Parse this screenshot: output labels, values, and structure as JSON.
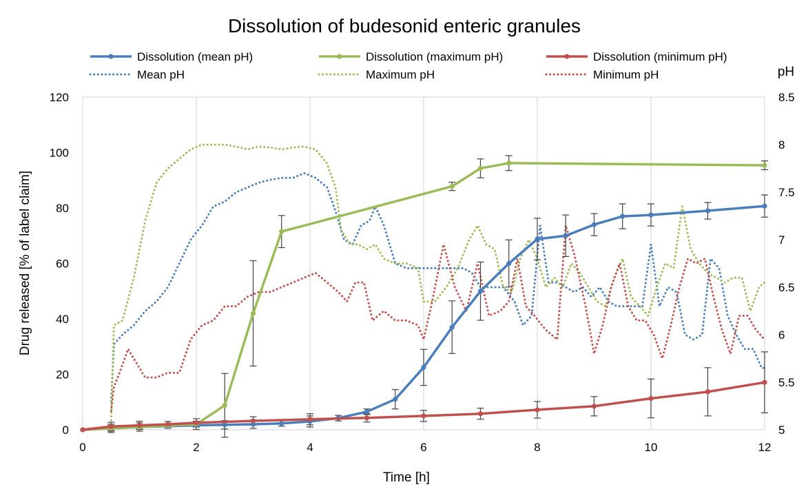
{
  "chart_data": {
    "type": "line",
    "title": "Dissolution of budesonid enteric granules",
    "xlabel": "Time [h]",
    "ylabel": "Drug released [% of label claim]",
    "y2label": "pH",
    "xlim": [
      0,
      12
    ],
    "ylim": [
      0,
      120
    ],
    "y2lim": [
      5,
      8.5
    ],
    "x_ticks": [
      0,
      2,
      4,
      6,
      8,
      10,
      12
    ],
    "y_ticks": [
      0,
      20,
      40,
      60,
      80,
      100,
      120
    ],
    "y2_ticks": [
      "5",
      "5.5",
      "6",
      "6.5",
      "7",
      "7.5",
      "8",
      "8.5"
    ],
    "grid": "vertical gridlines at x ticks",
    "legend_position": "top",
    "series": [
      {
        "name": "Dissolution (mean pH)",
        "axis": "left",
        "style": "solid",
        "color": "#4a7ebb",
        "x": [
          0,
          0.5,
          1,
          1.5,
          2,
          2.5,
          3,
          3.5,
          4,
          4.5,
          5,
          5.5,
          6,
          6.5,
          7,
          7.5,
          8,
          8.5,
          9,
          9.5,
          10,
          11,
          12
        ],
        "y": [
          0,
          0.5,
          1,
          1.3,
          1.6,
          1.8,
          2.0,
          2.3,
          3,
          4.2,
          6.5,
          11,
          22.5,
          37,
          50,
          60,
          68.8,
          70,
          74,
          77,
          77.5,
          79,
          80.7
        ],
        "err": [
          0,
          1.5,
          1.5,
          0.8,
          1.5,
          1.5,
          1.5,
          1,
          2,
          1,
          1,
          3.5,
          6.5,
          9.5,
          10.5,
          8.5,
          7.5,
          7.5,
          4,
          4.5,
          4,
          3,
          4
        ]
      },
      {
        "name": "Dissolution (maximum pH)",
        "axis": "left",
        "style": "solid",
        "color": "#9bbb59",
        "x": [
          0,
          0.5,
          1,
          1.5,
          2,
          2.5,
          3,
          3.5,
          6.5,
          7,
          7.5,
          12
        ],
        "y": [
          0,
          0.5,
          1,
          1.5,
          2,
          8.8,
          42,
          71.5,
          87.8,
          94.3,
          96.2,
          95.4
        ],
        "err": [
          0,
          1,
          0.5,
          0.5,
          1,
          11.5,
          19,
          5.8,
          1.5,
          3.4,
          2.7,
          1.6
        ]
      },
      {
        "name": "Dissolution (minimum pH)",
        "axis": "left",
        "style": "solid",
        "color": "#c0504d",
        "x": [
          0,
          0.5,
          1,
          1.5,
          2,
          3,
          4,
          5,
          6,
          7,
          8,
          9,
          10,
          11,
          12
        ],
        "y": [
          0,
          1.2,
          1.6,
          2,
          2.5,
          3.2,
          3.8,
          4.3,
          5,
          5.8,
          7.2,
          8.5,
          11.3,
          13.7,
          17.1
        ],
        "err": [
          0,
          1.5,
          1.5,
          1,
          1.5,
          1.5,
          2,
          1.5,
          2,
          2,
          3,
          3.5,
          7,
          8.7,
          11
        ]
      },
      {
        "name": "Mean pH",
        "axis": "right",
        "style": "dotted",
        "color": "#4a7ebb",
        "x": [
          0.5,
          0.55,
          0.7,
          0.9,
          1.1,
          1.3,
          1.5,
          1.7,
          1.9,
          2.1,
          2.3,
          2.5,
          2.7,
          2.9,
          3.1,
          3.3,
          3.5,
          3.7,
          3.9,
          4.1,
          4.3,
          4.45,
          4.6,
          4.75,
          4.9,
          5.05,
          5.15,
          5.3,
          5.5,
          5.7,
          5.9,
          6.1,
          6.3,
          6.5,
          6.7,
          6.85,
          7.0,
          7.2,
          7.4,
          7.6,
          7.75,
          7.9,
          8.05,
          8.2,
          8.35,
          8.5,
          8.65,
          8.8,
          8.95,
          9.1,
          9.25,
          9.4,
          9.55,
          9.7,
          9.85,
          10.0,
          10.15,
          10.3,
          10.45,
          10.6,
          10.75,
          10.9,
          11.05,
          11.2,
          11.35,
          11.5,
          11.65,
          11.8,
          11.95,
          12.0
        ],
        "y": [
          5.3,
          5.9,
          6.0,
          6.1,
          6.25,
          6.35,
          6.5,
          6.75,
          7.0,
          7.15,
          7.35,
          7.4,
          7.5,
          7.55,
          7.6,
          7.63,
          7.65,
          7.65,
          7.7,
          7.65,
          7.55,
          7.3,
          7.0,
          6.95,
          7.15,
          7.2,
          7.35,
          7.15,
          6.75,
          6.7,
          6.7,
          6.7,
          6.7,
          6.7,
          6.7,
          6.65,
          6.5,
          6.5,
          6.5,
          6.35,
          6.1,
          6.2,
          7.15,
          6.55,
          6.55,
          6.5,
          6.45,
          6.5,
          6.4,
          6.5,
          6.35,
          6.3,
          6.3,
          6.3,
          6.3,
          6.95,
          6.3,
          6.5,
          6.45,
          6.0,
          5.95,
          6.0,
          6.8,
          6.7,
          6.2,
          6.0,
          5.85,
          5.85,
          5.65,
          5.65
        ]
      },
      {
        "name": "Maximum pH",
        "axis": "right",
        "style": "dotted",
        "color": "#9bbb59",
        "x": [
          0.5,
          0.55,
          0.7,
          0.9,
          1.1,
          1.3,
          1.5,
          1.7,
          1.9,
          2.1,
          2.3,
          2.5,
          2.7,
          2.9,
          3.1,
          3.3,
          3.5,
          3.7,
          3.9,
          4.1,
          4.3,
          4.45,
          4.55,
          4.7,
          4.85,
          5.0,
          5.15,
          5.3,
          5.5,
          5.7,
          5.9,
          6.0,
          6.2,
          6.4,
          6.6,
          6.8,
          6.95,
          7.1,
          7.25,
          7.4,
          7.55,
          7.7,
          7.85,
          8.0,
          8.15,
          8.3,
          8.45,
          8.6,
          8.75,
          8.9,
          9.05,
          9.2,
          9.35,
          9.5,
          9.65,
          9.8,
          9.95,
          10.1,
          10.25,
          10.4,
          10.55,
          10.7,
          10.85,
          11.0,
          11.15,
          11.3,
          11.45,
          11.6,
          11.75,
          11.9,
          12.0
        ],
        "y": [
          5.1,
          6.1,
          6.15,
          6.6,
          7.2,
          7.6,
          7.75,
          7.85,
          7.95,
          8.0,
          8.0,
          8.0,
          7.98,
          7.95,
          7.98,
          7.97,
          7.95,
          7.97,
          7.98,
          7.95,
          7.8,
          7.55,
          7.1,
          6.95,
          6.95,
          6.9,
          6.95,
          6.8,
          6.75,
          6.75,
          6.7,
          6.35,
          6.35,
          6.5,
          6.7,
          7.0,
          7.15,
          6.95,
          6.9,
          6.5,
          6.45,
          6.8,
          7.0,
          6.8,
          6.5,
          6.6,
          6.5,
          6.75,
          6.65,
          6.5,
          6.35,
          6.3,
          6.6,
          6.8,
          6.4,
          6.3,
          6.2,
          6.5,
          6.75,
          6.7,
          7.35,
          6.9,
          6.75,
          6.65,
          6.6,
          6.55,
          6.6,
          6.6,
          6.25,
          6.5,
          6.55
        ]
      },
      {
        "name": "Minimum pH",
        "axis": "right",
        "style": "dotted",
        "color": "#c0504d",
        "x": [
          0.5,
          0.55,
          0.65,
          0.8,
          0.95,
          1.1,
          1.3,
          1.5,
          1.7,
          1.9,
          2.1,
          2.3,
          2.5,
          2.7,
          2.9,
          3.1,
          3.3,
          3.5,
          3.7,
          3.9,
          4.1,
          4.3,
          4.5,
          4.65,
          4.8,
          4.95,
          5.1,
          5.3,
          5.5,
          5.7,
          5.9,
          6.0,
          6.15,
          6.35,
          6.55,
          6.75,
          6.95,
          7.15,
          7.35,
          7.5,
          7.65,
          7.8,
          7.95,
          8.15,
          8.35,
          8.5,
          8.65,
          8.85,
          9.0,
          9.15,
          9.3,
          9.45,
          9.6,
          9.75,
          9.9,
          10.05,
          10.2,
          10.35,
          10.5,
          10.65,
          10.8,
          10.95,
          11.1,
          11.25,
          11.4,
          11.55,
          11.7,
          11.85,
          12.0
        ],
        "y": [
          5.2,
          5.45,
          5.6,
          5.85,
          5.7,
          5.55,
          5.55,
          5.6,
          5.6,
          5.95,
          6.1,
          6.15,
          6.3,
          6.3,
          6.4,
          6.45,
          6.45,
          6.5,
          6.55,
          6.6,
          6.65,
          6.55,
          6.45,
          6.35,
          6.55,
          6.55,
          6.15,
          6.25,
          6.15,
          6.15,
          6.1,
          5.95,
          6.35,
          6.95,
          6.5,
          6.25,
          6.75,
          6.2,
          6.25,
          6.35,
          6.8,
          6.3,
          6.2,
          6.05,
          5.95,
          7.15,
          6.85,
          6.3,
          5.8,
          6.1,
          6.5,
          6.75,
          6.3,
          6.15,
          6.15,
          6.0,
          5.75,
          6.1,
          6.5,
          6.8,
          6.75,
          6.8,
          6.4,
          6.05,
          5.8,
          6.2,
          6.2,
          6.05,
          5.95
        ]
      }
    ]
  }
}
